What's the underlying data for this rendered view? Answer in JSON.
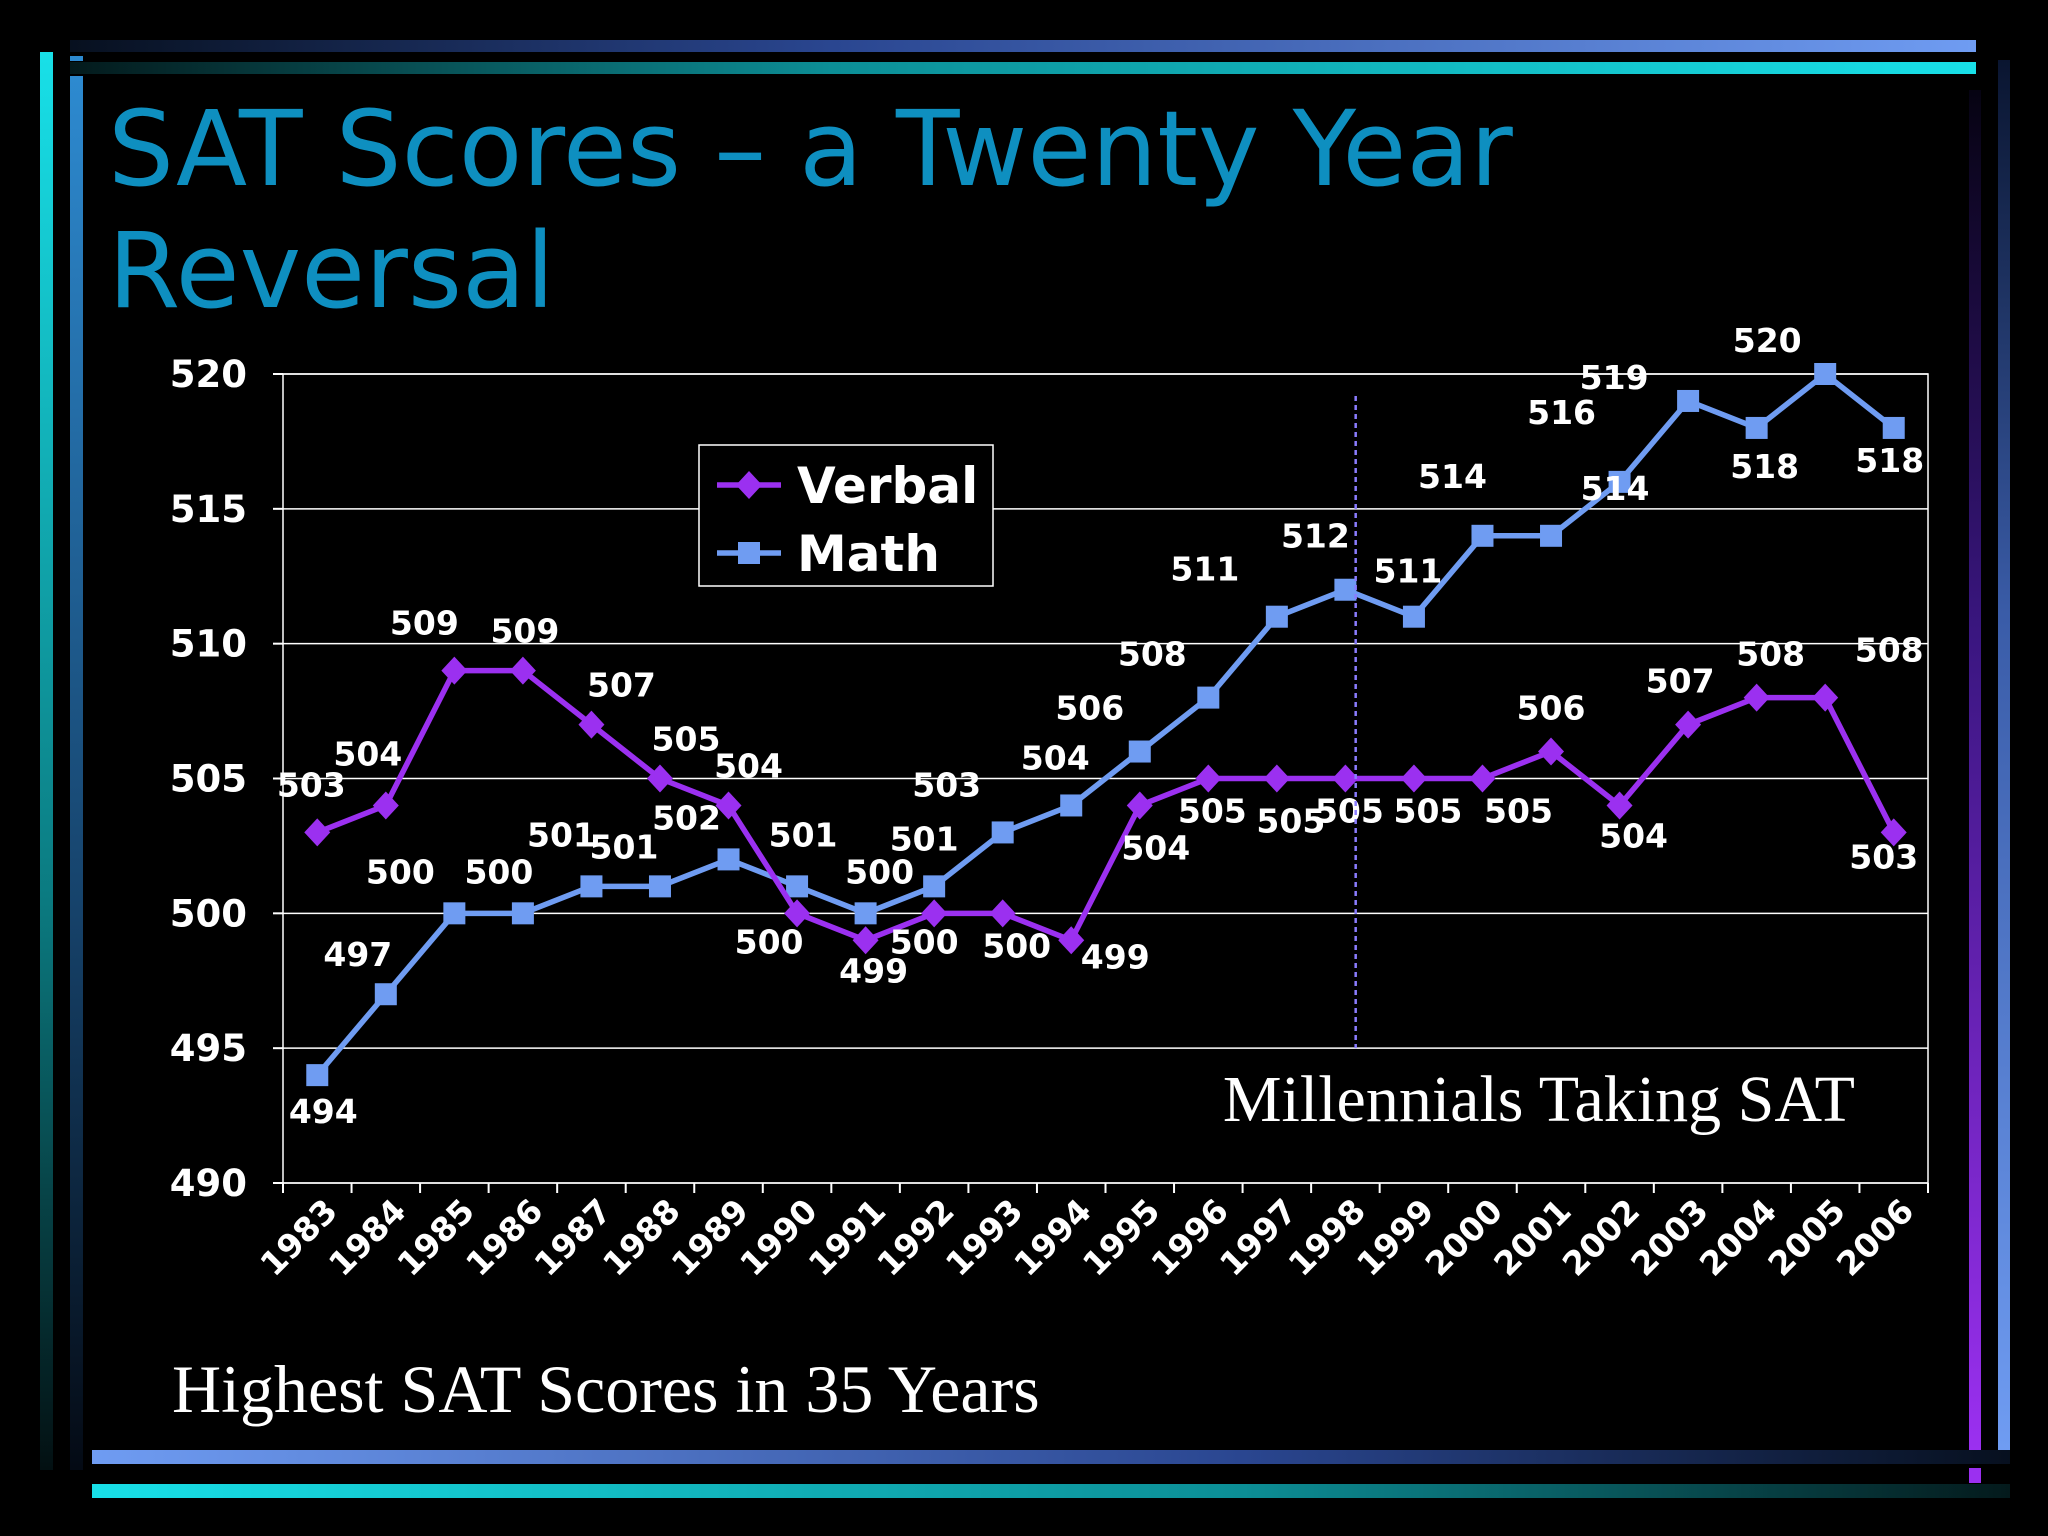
{
  "slide": {
    "title": "SAT Scores – a Twenty Year Reversal",
    "footer_note": "Highest SAT Scores in 35 Years",
    "colors": {
      "background": "#000000",
      "title": "#0e8fc0",
      "verbal": "#9b30f0",
      "math": "#6f9cf2",
      "accent_cyan": "#18e0e8",
      "accent_blue": "#6f9cf2",
      "accent_purple": "#9b30f0"
    }
  },
  "chart_data": {
    "type": "line",
    "title": "",
    "xlabel": "",
    "ylabel": "",
    "categories": [
      "1983",
      "1984",
      "1985",
      "1986",
      "1987",
      "1988",
      "1989",
      "1990",
      "1991",
      "1992",
      "1993",
      "1994",
      "1995",
      "1996",
      "1997",
      "1998",
      "1999",
      "2000",
      "2001",
      "2002",
      "2003",
      "2004",
      "2005",
      "2006"
    ],
    "series": [
      {
        "name": "Verbal",
        "marker": "diamond",
        "color": "#9b30f0",
        "values": [
          503,
          504,
          509,
          509,
          507,
          505,
          504,
          500,
          499,
          500,
          500,
          499,
          504,
          505,
          505,
          505,
          505,
          505,
          506,
          504,
          507,
          508,
          508,
          503
        ]
      },
      {
        "name": "Math",
        "marker": "square",
        "color": "#6f9cf2",
        "values": [
          494,
          497,
          500,
          500,
          501,
          501,
          502,
          501,
          500,
          501,
          503,
          504,
          506,
          508,
          511,
          512,
          511,
          514,
          514,
          516,
          519,
          518,
          520,
          518
        ]
      }
    ],
    "ylim": [
      490,
      520
    ],
    "yticks": [
      490,
      495,
      500,
      505,
      510,
      515,
      520
    ],
    "grid": "horizontal",
    "legend": "top-left",
    "annotation": {
      "text": "Millennials Taking SAT",
      "marker_line_after": "1998",
      "line_style": "dashed",
      "line_color": "#8a7cff"
    }
  }
}
